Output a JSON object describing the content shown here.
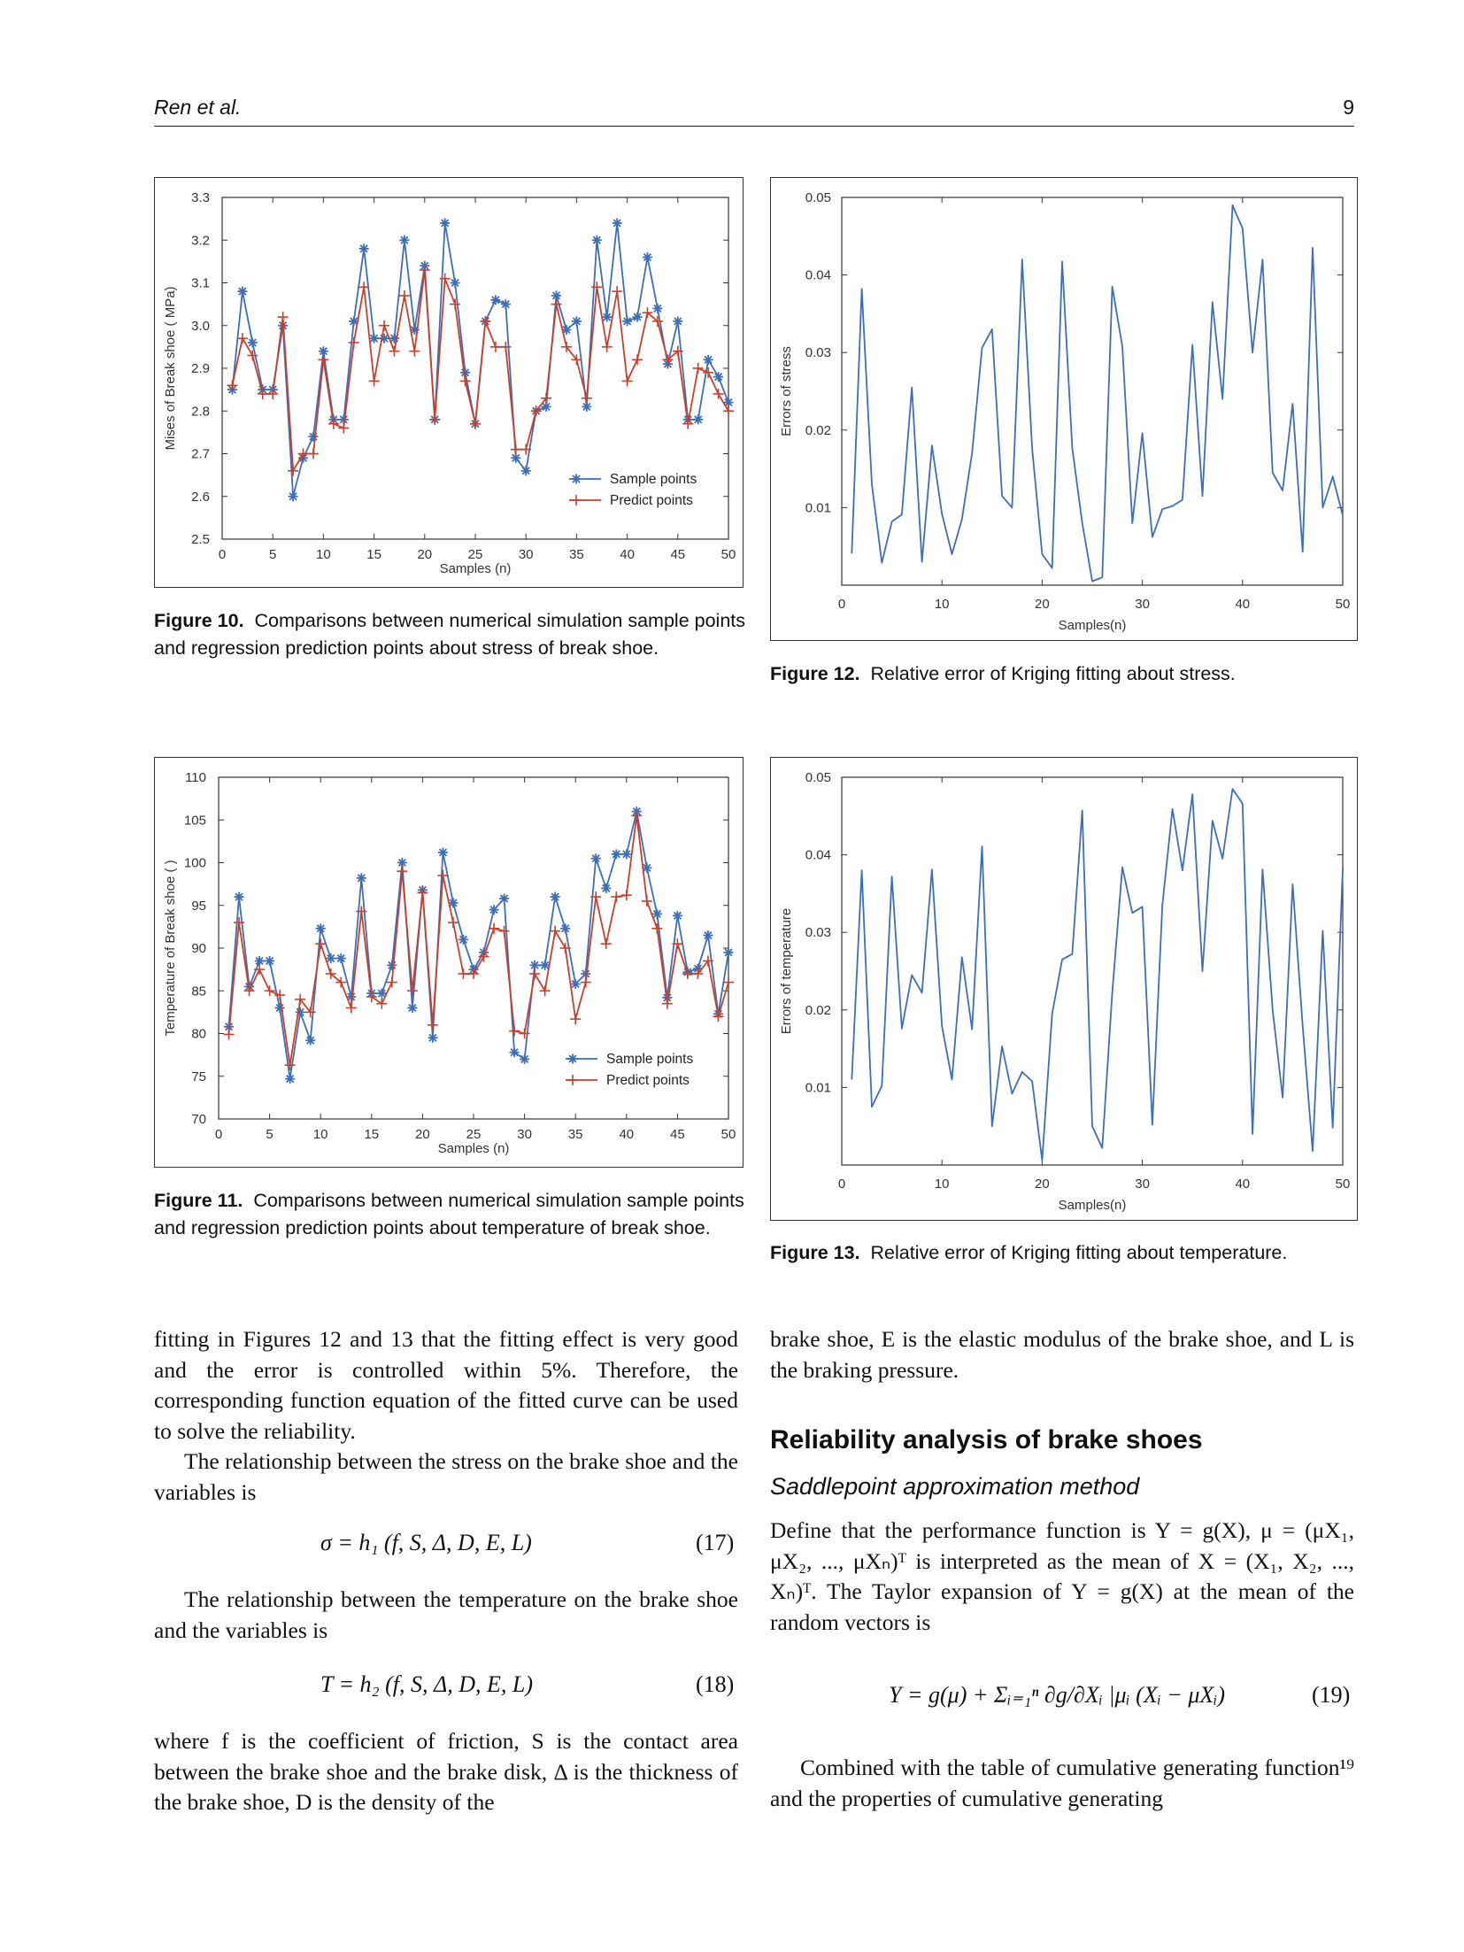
{
  "header": {
    "authors": "Ren et al.",
    "page": "9"
  },
  "figures": [
    {
      "id": "fig10",
      "label": "Figure 10.",
      "caption": "Comparisons between numerical simulation sample points and regression prediction points about stress of break shoe."
    },
    {
      "id": "fig11",
      "label": "Figure 11.",
      "caption": "Comparisons between numerical simulation sample points and regression prediction points about temperature of break shoe."
    },
    {
      "id": "fig12",
      "label": "Figure 12.",
      "caption": "Relative error of Kriging fitting about stress."
    },
    {
      "id": "fig13",
      "label": "Figure 13.",
      "caption": "Relative error of Kriging fitting about temperature."
    }
  ],
  "chart_data": [
    {
      "id": "fig10",
      "type": "line",
      "xlabel": "Samples (n)",
      "ylabel": "Mises of Break shoe ( MPa)",
      "xlim": [
        0,
        50
      ],
      "ylim": [
        2.5,
        3.3
      ],
      "xticks": [
        0,
        5,
        10,
        15,
        20,
        25,
        30,
        35,
        40,
        45,
        50
      ],
      "yticks": [
        2.5,
        2.6,
        2.7,
        2.8,
        2.9,
        3.0,
        3.1,
        3.2,
        3.3
      ],
      "ytick_labels": [
        "2.5",
        "2.6",
        "2.7",
        "2.8",
        "2.9",
        "3.0",
        "3.1",
        "3.2",
        "3.3"
      ],
      "legend_position": "bottom-right",
      "series": [
        {
          "name": "Sample points",
          "marker": "*",
          "color": "#3c6fb8",
          "values": [
            2.85,
            3.08,
            2.96,
            2.85,
            2.85,
            3.0,
            2.6,
            2.69,
            2.74,
            2.94,
            2.78,
            2.78,
            3.01,
            3.18,
            2.97,
            2.97,
            2.97,
            3.2,
            2.99,
            3.14,
            2.78,
            3.24,
            3.1,
            2.89,
            2.77,
            3.01,
            3.06,
            3.05,
            2.69,
            2.66,
            2.8,
            2.81,
            3.07,
            2.99,
            3.01,
            2.81,
            3.2,
            3.02,
            3.24,
            3.01,
            3.02,
            3.16,
            3.04,
            2.91,
            3.01,
            2.78,
            2.78,
            2.92,
            2.88,
            2.82
          ]
        },
        {
          "name": "Predict points",
          "marker": "+",
          "color": "#c8402b",
          "values": [
            2.86,
            2.97,
            2.93,
            2.84,
            2.84,
            3.02,
            2.66,
            2.7,
            2.7,
            2.92,
            2.77,
            2.76,
            2.96,
            3.09,
            2.87,
            3.0,
            2.94,
            3.07,
            2.94,
            3.13,
            2.78,
            3.11,
            3.05,
            2.87,
            2.77,
            3.01,
            2.95,
            2.95,
            2.71,
            2.71,
            2.8,
            2.83,
            3.05,
            2.95,
            2.92,
            2.83,
            3.09,
            2.95,
            3.08,
            2.87,
            2.92,
            3.03,
            3.01,
            2.92,
            2.94,
            2.77,
            2.9,
            2.89,
            2.84,
            2.8
          ]
        }
      ]
    },
    {
      "id": "fig11",
      "type": "line",
      "xlabel": "Samples (n)",
      "ylabel": "Temperature of Break shoe ( )",
      "xlim": [
        0,
        50
      ],
      "ylim": [
        70,
        110
      ],
      "xticks": [
        0,
        5,
        10,
        15,
        20,
        25,
        30,
        35,
        40,
        45,
        50
      ],
      "yticks": [
        70,
        75,
        80,
        85,
        90,
        95,
        100,
        105,
        110
      ],
      "ytick_labels": [
        "70",
        "75",
        "80",
        "85",
        "90",
        "95",
        "100",
        "105",
        "110"
      ],
      "legend_position": "bottom-right",
      "series": [
        {
          "name": "Sample points",
          "marker": "*",
          "color": "#3c6fb8",
          "values": [
            80.8,
            96.0,
            85.5,
            88.5,
            88.5,
            83.0,
            74.7,
            82.5,
            79.2,
            92.3,
            88.8,
            88.8,
            84.3,
            98.2,
            84.7,
            84.7,
            88.0,
            100.0,
            83.0,
            96.8,
            79.5,
            101.2,
            95.3,
            91.0,
            87.5,
            89.5,
            94.5,
            95.8,
            77.8,
            77.0,
            88.0,
            88.0,
            96.0,
            92.3,
            85.8,
            87.0,
            100.5,
            97.0,
            101.0,
            101.0,
            106.0,
            99.4,
            94.0,
            84.2,
            93.8,
            87.2,
            87.6,
            91.5,
            82.3,
            89.5
          ]
        },
        {
          "name": "Predict points",
          "marker": "+",
          "color": "#c8402b",
          "values": [
            79.9,
            93.0,
            85.0,
            87.5,
            85.0,
            84.5,
            76.3,
            84.0,
            82.5,
            90.5,
            87.0,
            86.0,
            83.0,
            94.3,
            84.3,
            83.5,
            86.0,
            99.0,
            85.0,
            96.5,
            81.0,
            98.5,
            93.0,
            87.0,
            87.0,
            89.0,
            92.3,
            92.0,
            80.3,
            80.0,
            87.0,
            85.0,
            92.0,
            90.0,
            81.7,
            86.0,
            96.0,
            90.5,
            96.0,
            96.2,
            105.5,
            95.5,
            92.3,
            83.5,
            90.5,
            87.0,
            87.0,
            88.5,
            82.0,
            86.0
          ]
        }
      ]
    },
    {
      "id": "fig12",
      "type": "line",
      "xlabel": "Samples(n)",
      "ylabel": "Errors of stress",
      "xlim": [
        0,
        50
      ],
      "ylim": [
        0,
        0.05
      ],
      "xticks": [
        10,
        20,
        30,
        40,
        50
      ],
      "yticks": [
        0.01,
        0.02,
        0.03,
        0.04,
        0.05
      ],
      "ytick_labels": [
        "0.01",
        "0.02",
        "0.03",
        "0.04",
        "0.05"
      ],
      "origin_label": "0",
      "series": [
        {
          "name": "",
          "color": "#3c6fb8",
          "values": [
            0.0041,
            0.0382,
            0.013,
            0.0029,
            0.0082,
            0.0091,
            0.0255,
            0.003,
            0.018,
            0.0092,
            0.004,
            0.0085,
            0.017,
            0.0306,
            0.033,
            0.0115,
            0.01,
            0.042,
            0.0176,
            0.004,
            0.0022,
            0.0417,
            0.0177,
            0.008,
            0.0005,
            0.001,
            0.0385,
            0.0308,
            0.008,
            0.0196,
            0.0062,
            0.0098,
            0.0102,
            0.011,
            0.031,
            0.0115,
            0.0365,
            0.024,
            0.049,
            0.046,
            0.03,
            0.042,
            0.0145,
            0.0122,
            0.0234,
            0.0043,
            0.0435,
            0.01,
            0.014,
            0.009
          ]
        }
      ]
    },
    {
      "id": "fig13",
      "type": "line",
      "xlabel": "Samples(n)",
      "ylabel": "Errors of temperature",
      "xlim": [
        0,
        50
      ],
      "ylim": [
        0,
        0.05
      ],
      "xticks": [
        10,
        20,
        30,
        40,
        50
      ],
      "yticks": [
        0.01,
        0.02,
        0.03,
        0.04,
        0.05
      ],
      "ytick_labels": [
        "0.01",
        "0.02",
        "0.03",
        "0.04",
        "0.05"
      ],
      "origin_label": "0",
      "series": [
        {
          "name": "",
          "color": "#3c6fb8",
          "values": [
            0.011,
            0.038,
            0.0075,
            0.0102,
            0.0372,
            0.0176,
            0.0245,
            0.0222,
            0.0381,
            0.0179,
            0.011,
            0.0268,
            0.0175,
            0.0411,
            0.005,
            0.0153,
            0.0092,
            0.012,
            0.0108,
            0.0006,
            0.0195,
            0.0265,
            0.0272,
            0.0457,
            0.005,
            0.0022,
            0.0222,
            0.0384,
            0.0325,
            0.0333,
            0.0052,
            0.0335,
            0.0459,
            0.038,
            0.0478,
            0.025,
            0.0444,
            0.0395,
            0.0485,
            0.0466,
            0.004,
            0.0381,
            0.02,
            0.0087,
            0.0362,
            0.018,
            0.0018,
            0.0302,
            0.0048,
            0.0382
          ]
        }
      ]
    }
  ],
  "text": {
    "left_p1": "fitting in Figures 12 and 13 that the fitting effect is very good and the error is controlled within 5%. Therefore, the corresponding function equation of the fitted curve can be used to solve the reliability.",
    "left_p2": "The relationship between the stress on the brake shoe and the variables is",
    "eq17": "σ = h₁ (f, S, Δ, D, E, L)",
    "eq17_no": "(17)",
    "left_p3": "The relationship between the temperature on the brake shoe and the variables is",
    "eq18": "T = h₂ (f, S, Δ, D, E, L)",
    "eq18_no": "(18)",
    "left_p4": "where f is the coefficient of friction, S is the contact area between the brake shoe and the brake disk, Δ is the thickness of the brake shoe, D is the density of the",
    "right_p1": "brake shoe, E is the elastic modulus of the brake shoe, and L is the braking pressure.",
    "section_heading": "Reliability analysis of brake shoes",
    "subsection_heading": "Saddlepoint approximation method",
    "right_p2": "Define that the performance function is Y = g(X), μ = (μX₁, μX₂, ..., μXₙ)ᵀ is interpreted as the mean of X = (X₁, X₂, ..., Xₙ)ᵀ. The Taylor expansion of Y = g(X) at the mean of the random vectors is",
    "eq19": "Y = g(μ) + Σᵢ₌₁ⁿ ∂g/∂Xᵢ |μᵢ (Xᵢ − μXᵢ)",
    "eq19_no": "(19)",
    "right_p3": "Combined with the table of cumulative generating function¹⁹ and the properties of cumulative generating"
  }
}
